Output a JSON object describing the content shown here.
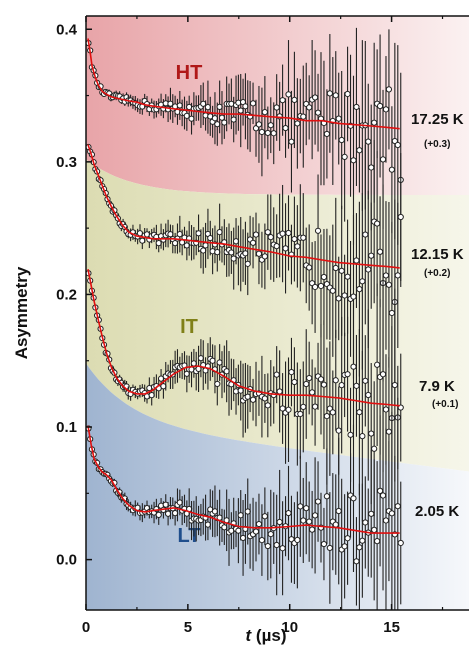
{
  "chart_data": {
    "type": "scatter",
    "xlabel": "t (µs)",
    "xlabel_parts": {
      "italic": "t",
      "unit": " (µs)"
    },
    "ylabel": "Asymmetry",
    "xlim": [
      0,
      18.8
    ],
    "ylim": [
      -0.038,
      0.41
    ],
    "x_ticks": [
      0,
      5,
      10,
      15
    ],
    "y_ticks": [
      0.0,
      0.1,
      0.2,
      0.3,
      0.4
    ],
    "y_tick_labels": [
      "0.0",
      "0.1",
      "0.2",
      "0.3",
      "0.4"
    ],
    "grid": false,
    "regions": [
      {
        "name": "HT",
        "color": "#b01818",
        "fill": "#e8a4a8"
      },
      {
        "name": "IT",
        "color": "#808018",
        "fill": "#ddddb4"
      },
      {
        "name": "LT",
        "color": "#1f4e8c",
        "fill": "#9fb4d0"
      }
    ],
    "series": [
      {
        "label": "17.25 K",
        "offset": "(+0.3)",
        "fit_color": "#e01010",
        "points": [
          [
            0.1,
            0.393
          ],
          [
            0.2,
            0.383
          ],
          [
            0.3,
            0.372
          ],
          [
            0.45,
            0.364
          ],
          [
            0.6,
            0.358
          ],
          [
            0.8,
            0.353
          ],
          [
            1.0,
            0.351
          ],
          [
            1.25,
            0.349
          ],
          [
            1.5,
            0.348
          ],
          [
            1.8,
            0.347
          ],
          [
            2.1,
            0.346
          ],
          [
            2.5,
            0.345
          ],
          [
            2.9,
            0.343
          ],
          [
            3.3,
            0.342
          ],
          [
            3.8,
            0.341
          ],
          [
            4.3,
            0.34
          ],
          [
            4.9,
            0.339
          ],
          [
            5.5,
            0.338
          ],
          [
            6.1,
            0.337
          ],
          [
            6.8,
            0.336
          ],
          [
            7.5,
            0.336
          ],
          [
            8.3,
            0.335
          ],
          [
            9.1,
            0.334
          ],
          [
            10.0,
            0.333
          ],
          [
            10.8,
            0.331
          ],
          [
            11.6,
            0.331
          ],
          [
            12.4,
            0.329
          ],
          [
            13.2,
            0.328
          ],
          [
            14.0,
            0.327
          ],
          [
            14.8,
            0.326
          ],
          [
            15.4,
            0.325
          ]
        ]
      },
      {
        "label": "12.15 K",
        "offset": "(+0.2)",
        "fit_color": "#e01010",
        "points": [
          [
            0.1,
            0.313
          ],
          [
            0.25,
            0.306
          ],
          [
            0.4,
            0.298
          ],
          [
            0.6,
            0.29
          ],
          [
            0.8,
            0.282
          ],
          [
            1.0,
            0.274
          ],
          [
            1.25,
            0.266
          ],
          [
            1.5,
            0.259
          ],
          [
            1.8,
            0.252
          ],
          [
            2.1,
            0.247
          ],
          [
            2.5,
            0.244
          ],
          [
            2.9,
            0.243
          ],
          [
            3.3,
            0.242
          ],
          [
            3.8,
            0.242
          ],
          [
            4.3,
            0.242
          ],
          [
            4.9,
            0.241
          ],
          [
            5.5,
            0.24
          ],
          [
            6.1,
            0.239
          ],
          [
            6.8,
            0.238
          ],
          [
            7.5,
            0.236
          ],
          [
            8.3,
            0.234
          ],
          [
            9.1,
            0.232
          ],
          [
            10.0,
            0.229
          ],
          [
            10.8,
            0.228
          ],
          [
            11.6,
            0.226
          ],
          [
            12.4,
            0.224
          ],
          [
            13.2,
            0.223
          ],
          [
            14.0,
            0.222
          ],
          [
            14.8,
            0.221
          ],
          [
            15.4,
            0.22
          ]
        ]
      },
      {
        "label": "7.9 K",
        "offset": "(+0.1)",
        "fit_color": "#e01010",
        "points": [
          [
            0.1,
            0.219
          ],
          [
            0.25,
            0.207
          ],
          [
            0.4,
            0.195
          ],
          [
            0.6,
            0.181
          ],
          [
            0.8,
            0.168
          ],
          [
            1.0,
            0.156
          ],
          [
            1.25,
            0.145
          ],
          [
            1.5,
            0.137
          ],
          [
            1.8,
            0.131
          ],
          [
            2.1,
            0.127
          ],
          [
            2.5,
            0.125
          ],
          [
            2.9,
            0.125
          ],
          [
            3.3,
            0.128
          ],
          [
            3.8,
            0.134
          ],
          [
            4.3,
            0.14
          ],
          [
            4.9,
            0.145
          ],
          [
            5.5,
            0.146
          ],
          [
            6.1,
            0.144
          ],
          [
            6.8,
            0.138
          ],
          [
            7.5,
            0.131
          ],
          [
            8.3,
            0.127
          ],
          [
            9.1,
            0.125
          ],
          [
            10.0,
            0.124
          ],
          [
            10.8,
            0.124
          ],
          [
            11.6,
            0.123
          ],
          [
            12.4,
            0.122
          ],
          [
            13.2,
            0.12
          ],
          [
            14.0,
            0.118
          ],
          [
            14.8,
            0.117
          ],
          [
            15.4,
            0.116
          ]
        ]
      },
      {
        "label": "2.05 K",
        "offset": "",
        "fit_color": "#e01010",
        "points": [
          [
            0.1,
            0.101
          ],
          [
            0.25,
            0.087
          ],
          [
            0.4,
            0.076
          ],
          [
            0.6,
            0.07
          ],
          [
            0.8,
            0.066
          ],
          [
            1.0,
            0.064
          ],
          [
            1.25,
            0.06
          ],
          [
            1.5,
            0.053
          ],
          [
            1.8,
            0.046
          ],
          [
            2.1,
            0.041
          ],
          [
            2.5,
            0.037
          ],
          [
            2.9,
            0.036
          ],
          [
            3.3,
            0.037
          ],
          [
            3.8,
            0.038
          ],
          [
            4.3,
            0.039
          ],
          [
            4.9,
            0.037
          ],
          [
            5.5,
            0.034
          ],
          [
            6.1,
            0.032
          ],
          [
            6.8,
            0.028
          ],
          [
            7.5,
            0.025
          ],
          [
            8.3,
            0.024
          ],
          [
            9.1,
            0.024
          ],
          [
            10.0,
            0.025
          ],
          [
            10.8,
            0.026
          ],
          [
            11.6,
            0.025
          ],
          [
            12.4,
            0.024
          ],
          [
            13.2,
            0.022
          ],
          [
            14.0,
            0.02
          ],
          [
            14.8,
            0.02
          ],
          [
            15.4,
            0.02
          ]
        ]
      }
    ]
  }
}
